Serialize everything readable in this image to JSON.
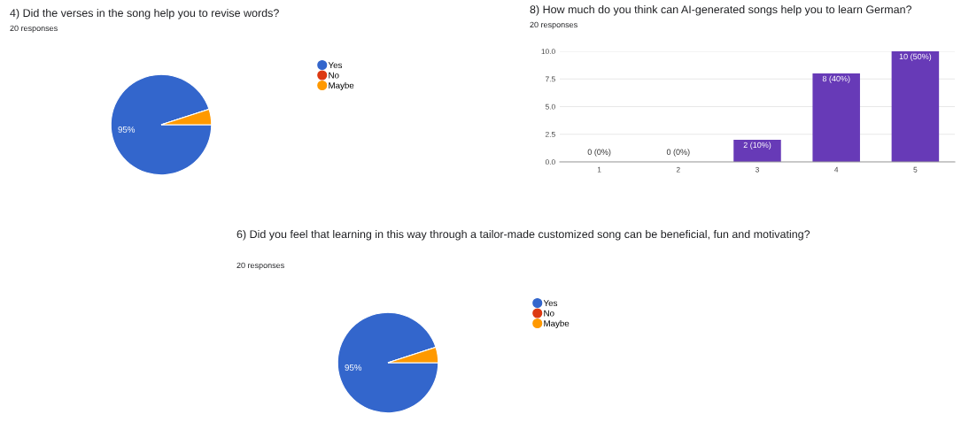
{
  "chart_data": [
    {
      "type": "pie",
      "title": "4) Did the verses in the song help you to revise words?",
      "subtitle": "20 responses",
      "categories": [
        "Yes",
        "No",
        "Maybe"
      ],
      "values": [
        95,
        0,
        5
      ],
      "colors": [
        "#3366cc",
        "#dc3912",
        "#ff9900"
      ],
      "value_labels": [
        "95%",
        null,
        null
      ],
      "legend": "right"
    },
    {
      "type": "bar",
      "title": "8) How much do you think can AI-generated songs help you to learn German?",
      "subtitle": "20 responses",
      "categories": [
        "1",
        "2",
        "3",
        "4",
        "5"
      ],
      "values": [
        0,
        0,
        2,
        8,
        10
      ],
      "color": "#673ab7",
      "value_labels": [
        "0 (0%)",
        "0 (0%)",
        "2 (10%)",
        "8 (40%)",
        "10 (50%)"
      ],
      "ylim": [
        0,
        10
      ],
      "yticks": [
        {
          "value": 0,
          "label": "0.0"
        },
        {
          "value": 2.5,
          "label": "2.5"
        },
        {
          "value": 5,
          "label": "5.0"
        },
        {
          "value": 7.5,
          "label": "7.5"
        },
        {
          "value": 10,
          "label": "10.0"
        }
      ],
      "grid": "y"
    },
    {
      "type": "pie",
      "title": "6) Did you feel that learning in this way through a tailor-made customized song can be beneficial, fun and motivating?",
      "subtitle": "20 responses",
      "categories": [
        "Yes",
        "No",
        "Maybe"
      ],
      "values": [
        95,
        0,
        5
      ],
      "colors": [
        "#3366cc",
        "#dc3912",
        "#ff9900"
      ],
      "value_labels": [
        "95%",
        null,
        null
      ],
      "legend": "right"
    }
  ]
}
